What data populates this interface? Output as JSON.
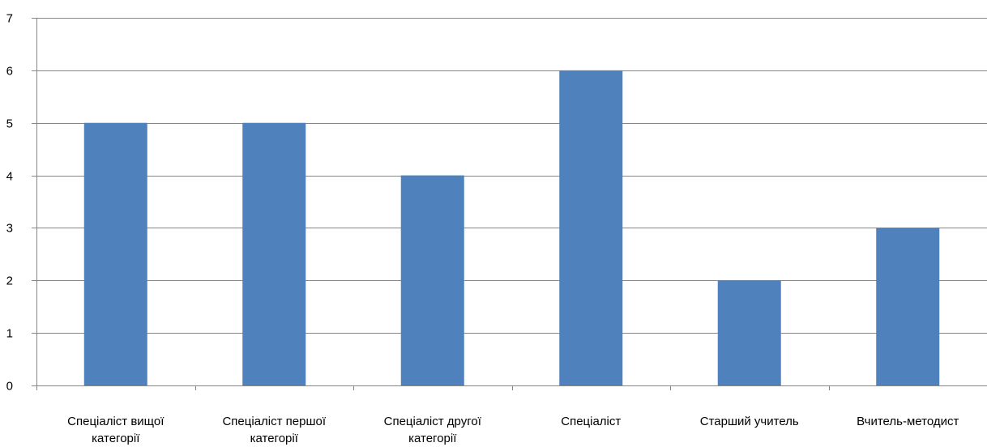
{
  "chart_data": {
    "type": "bar",
    "categories": [
      [
        "Спеціаліст вищої",
        "категорії"
      ],
      [
        "Спеціаліст першої",
        "категорії"
      ],
      [
        "Спеціаліст другої",
        "категорії"
      ],
      [
        "Спеціаліст"
      ],
      [
        "Старший учитель"
      ],
      [
        "Вчитель-методист"
      ]
    ],
    "values": [
      5,
      5,
      4,
      6,
      2,
      3
    ],
    "ylim": [
      0,
      7
    ],
    "yticks": [
      "0",
      "1",
      "2",
      "3",
      "4",
      "5",
      "6",
      "7"
    ],
    "grid": true,
    "legend": "none",
    "title": "",
    "xlabel": "",
    "ylabel": "",
    "colors": {
      "bar": "#4f81bd",
      "grid": "#868686",
      "axis": "#868686"
    }
  }
}
